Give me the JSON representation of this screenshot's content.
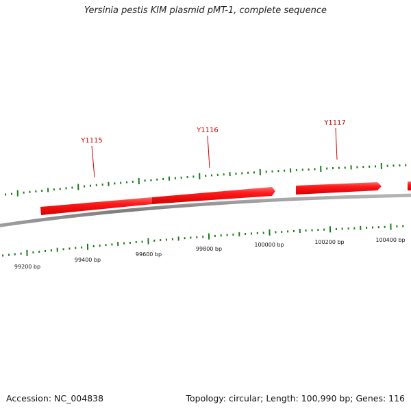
{
  "title": "Yersinia pestis KIM plasmid pMT-1, complete sequence",
  "footer": {
    "accession": "Accession: NC_004838",
    "summary": "Topology: circular; Length: 100,990 bp; Genes: 116"
  },
  "colors": {
    "gene": "#ff1a1a",
    "gene_label": "#cc0000",
    "tick": "#1a7a1a",
    "backbone": "#8c8c8c",
    "text": "#111111"
  },
  "genes": [
    {
      "label": "Y1115"
    },
    {
      "label": "Y1116"
    },
    {
      "label": "Y1117"
    }
  ],
  "scale_labels": [
    "99200 bp",
    "99400 bp",
    "99600 bp",
    "99800 bp",
    "100000 bp",
    "100200 bp",
    "100400 bp"
  ]
}
